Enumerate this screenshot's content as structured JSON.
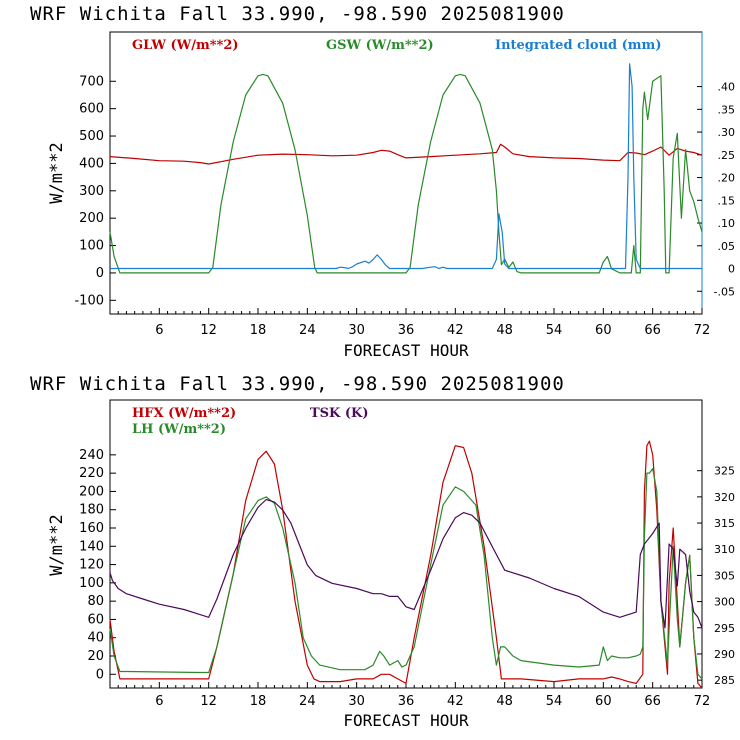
{
  "colors": {
    "glw": "#c00000",
    "gsw": "#2a8a2a",
    "cloud": "#1a7fd0",
    "hfx": "#c00000",
    "lh": "#2a8a2a",
    "tsk": "#4b0a5a"
  },
  "chart_data": [
    {
      "type": "line",
      "title": "WRF   Wichita Fall  33.990, -98.590  2025081900",
      "xlabel": "FORECAST HOUR",
      "ylabel": "W/m**2",
      "xlim": [
        0,
        72
      ],
      "ylim": [
        -150,
        880
      ],
      "xticks": [
        "6",
        "12",
        "18",
        "24",
        "30",
        "36",
        "42",
        "48",
        "54",
        "60",
        "66",
        "72"
      ],
      "yticks": [
        "-100",
        "0",
        "100",
        "200",
        "300",
        "400",
        "500",
        "600",
        "700"
      ],
      "y2lim": [
        -0.1,
        0.52
      ],
      "y2ticks": [
        "-.05",
        "0",
        ".05",
        ".10",
        ".15",
        ".20",
        ".25",
        ".30",
        ".35",
        ".40"
      ],
      "legend": [
        "GLW (W/m**2)",
        "GSW (W/m**2)",
        "Integrated cloud (mm)"
      ],
      "series": [
        {
          "name": "GLW (W/m**2)",
          "axis": "left",
          "x": [
            0,
            3,
            6,
            9,
            11,
            12,
            15,
            18,
            21,
            24,
            27,
            30,
            32,
            33,
            34,
            35,
            36,
            39,
            42,
            45,
            47,
            47.5,
            48,
            49,
            51,
            54,
            57,
            60,
            62,
            63,
            64,
            65,
            66,
            67,
            68,
            69,
            70,
            71,
            72
          ],
          "y": [
            425,
            418,
            410,
            408,
            403,
            398,
            415,
            430,
            434,
            432,
            428,
            430,
            440,
            448,
            445,
            432,
            420,
            425,
            430,
            435,
            440,
            470,
            460,
            435,
            425,
            420,
            418,
            412,
            410,
            440,
            438,
            432,
            445,
            460,
            430,
            455,
            445,
            440,
            430
          ]
        },
        {
          "name": "GSW (W/m**2)",
          "axis": "left",
          "x": [
            0,
            0.5,
            1.2,
            2,
            12,
            12.5,
            13.5,
            15,
            16.5,
            18,
            18.6,
            19.2,
            21,
            22.5,
            24,
            24.9,
            25.2,
            36,
            36.5,
            37.5,
            39,
            40.5,
            42,
            42.6,
            43.2,
            45,
            46.5,
            47,
            47.3,
            47.6,
            48,
            48.5,
            49,
            49.5,
            50,
            59.5,
            60,
            60.5,
            61,
            62,
            62.5,
            63.4,
            63.7,
            64,
            64.5,
            64.8,
            65,
            65.4,
            66,
            67,
            67.4,
            67.6,
            68,
            68.5,
            69,
            69.5,
            70,
            70.5,
            71,
            71.5,
            72
          ],
          "y": [
            150,
            60,
            0,
            0,
            0,
            20,
            250,
            480,
            650,
            720,
            725,
            720,
            620,
            450,
            210,
            20,
            0,
            0,
            20,
            250,
            480,
            650,
            720,
            725,
            720,
            620,
            450,
            300,
            150,
            30,
            50,
            20,
            40,
            5,
            0,
            0,
            40,
            60,
            15,
            0,
            0,
            0,
            100,
            0,
            0,
            600,
            660,
            560,
            700,
            720,
            300,
            0,
            0,
            420,
            510,
            200,
            450,
            300,
            260,
            200,
            150
          ]
        },
        {
          "name": "Integrated cloud (mm)",
          "axis": "right",
          "x": [
            0,
            27.5,
            28,
            28.5,
            29,
            29.5,
            30,
            31,
            31.5,
            32,
            32.5,
            33,
            33.5,
            34,
            38,
            39,
            39.5,
            40,
            40.5,
            41,
            46.5,
            47,
            47.3,
            47.7,
            48,
            48.5,
            49,
            62.7,
            63,
            63.2,
            63.5,
            63.7,
            64,
            64.5,
            72
          ],
          "y": [
            0,
            0,
            0.003,
            0.002,
            0,
            0.004,
            0.01,
            0.016,
            0.012,
            0.02,
            0.03,
            0.02,
            0.008,
            0,
            0,
            0.003,
            0.004,
            0,
            0.003,
            0,
            0,
            0.02,
            0.12,
            0.08,
            0.01,
            0,
            0,
            0,
            0.2,
            0.45,
            0.4,
            0.2,
            0.02,
            0,
            0
          ]
        }
      ]
    },
    {
      "type": "line",
      "title": "WRF   Wichita Fall  33.990, -98.590  2025081900",
      "xlabel": "FORECAST HOUR",
      "ylabel": "W/m**2",
      "xlim": [
        0,
        72
      ],
      "ylim": [
        -15,
        300
      ],
      "xticks": [
        "6",
        "12",
        "18",
        "24",
        "30",
        "36",
        "42",
        "48",
        "54",
        "60",
        "66",
        "72"
      ],
      "yticks": [
        "0",
        "20",
        "40",
        "60",
        "80",
        "100",
        "120",
        "140",
        "160",
        "180",
        "200",
        "220",
        "240"
      ],
      "y2lim": [
        283.5,
        338.5
      ],
      "y2ticks": [
        "285",
        "290",
        "295",
        "300",
        "305",
        "310",
        "315",
        "320",
        "325"
      ],
      "legend": [
        "HFX (W/m**2)",
        "LH  (W/m**2)",
        "TSK (K)"
      ],
      "series": [
        {
          "name": "HFX (W/m**2)",
          "axis": "left",
          "x": [
            0,
            0.5,
            1.2,
            2,
            11,
            12,
            13,
            15,
            16.5,
            18,
            19,
            20,
            21,
            22.5,
            24,
            24.8,
            25.5,
            28,
            30,
            31,
            32,
            33,
            34,
            35,
            36,
            37,
            39,
            40.5,
            42,
            43,
            44,
            45.5,
            47,
            47.6,
            48,
            50,
            54,
            57,
            60,
            61,
            62,
            63,
            64,
            64.8,
            65,
            65.3,
            65.6,
            66,
            66.5,
            67,
            67.8,
            68,
            68.5,
            69,
            69.3,
            70,
            70.5,
            71,
            71.5,
            72
          ],
          "y": [
            60,
            25,
            -5,
            -5,
            -5,
            -5,
            30,
            110,
            190,
            235,
            244,
            230,
            180,
            80,
            10,
            -5,
            -8,
            -8,
            -5,
            -5,
            -5,
            0,
            0,
            -5,
            -10,
            40,
            130,
            210,
            250,
            248,
            220,
            140,
            40,
            -5,
            -5,
            -5,
            -8,
            -5,
            -5,
            -3,
            -5,
            -8,
            -10,
            0,
            200,
            250,
            255,
            240,
            180,
            80,
            0,
            100,
            160,
            80,
            30,
            100,
            130,
            40,
            -10,
            -15
          ]
        },
        {
          "name": "LH  (W/m**2)",
          "axis": "left",
          "x": [
            0,
            0.5,
            1.2,
            2,
            11,
            12,
            13,
            15,
            16.5,
            18,
            19,
            20,
            21,
            22.5,
            23.5,
            24.5,
            25.5,
            28,
            30,
            31,
            32,
            32.8,
            33.3,
            34,
            35,
            35.5,
            36,
            37,
            39,
            40.5,
            42,
            43,
            44.5,
            45.5,
            46.5,
            47,
            47.5,
            48,
            49,
            50,
            54,
            57,
            59.5,
            60,
            60.5,
            61,
            62,
            63,
            64,
            64.5,
            64.8,
            65,
            65.3,
            65.6,
            66,
            66.5,
            67,
            67.8,
            68,
            68.5,
            69,
            69.3,
            70,
            70.5,
            71,
            71.5,
            72
          ],
          "y": [
            50,
            20,
            3,
            3,
            2,
            2,
            30,
            110,
            170,
            190,
            194,
            187,
            160,
            100,
            40,
            20,
            10,
            5,
            5,
            5,
            10,
            25,
            20,
            10,
            15,
            8,
            10,
            30,
            120,
            185,
            205,
            200,
            185,
            130,
            40,
            10,
            30,
            30,
            20,
            15,
            10,
            8,
            10,
            30,
            15,
            20,
            18,
            18,
            20,
            22,
            30,
            150,
            220,
            220,
            225,
            200,
            80,
            10,
            50,
            140,
            60,
            30,
            100,
            130,
            40,
            0,
            -5
          ]
        },
        {
          "name": "TSK (K)",
          "axis": "right",
          "x": [
            0,
            0.3,
            1,
            2,
            4,
            6,
            9,
            11,
            12,
            13,
            15,
            16.5,
            18,
            19,
            20,
            21,
            22,
            23,
            24,
            25,
            27,
            30,
            32,
            33,
            34,
            35,
            36,
            37,
            39,
            40.5,
            42,
            43,
            44,
            45,
            46,
            47,
            48,
            51,
            54,
            57,
            60,
            62,
            63,
            64,
            64.5,
            65,
            65.5,
            66,
            66.8,
            67,
            67.5,
            68,
            68.5,
            69,
            69.3,
            70,
            70.5,
            71,
            71.5,
            72
          ],
          "y": [
            305.5,
            304,
            302.5,
            301.5,
            300.5,
            299.5,
            298.5,
            297.5,
            297,
            300.5,
            309,
            314,
            318,
            319.5,
            319,
            317.5,
            315,
            311,
            307,
            305,
            303.5,
            302.5,
            301.5,
            301.5,
            301,
            301,
            299,
            298.5,
            306,
            312,
            316,
            317,
            316.5,
            315,
            312,
            309,
            306,
            304.5,
            302.5,
            301,
            298,
            297,
            297.5,
            298,
            309,
            311,
            312,
            313,
            315,
            300,
            295,
            311,
            310,
            303,
            310,
            309,
            302,
            298,
            297,
            295
          ]
        }
      ]
    }
  ]
}
